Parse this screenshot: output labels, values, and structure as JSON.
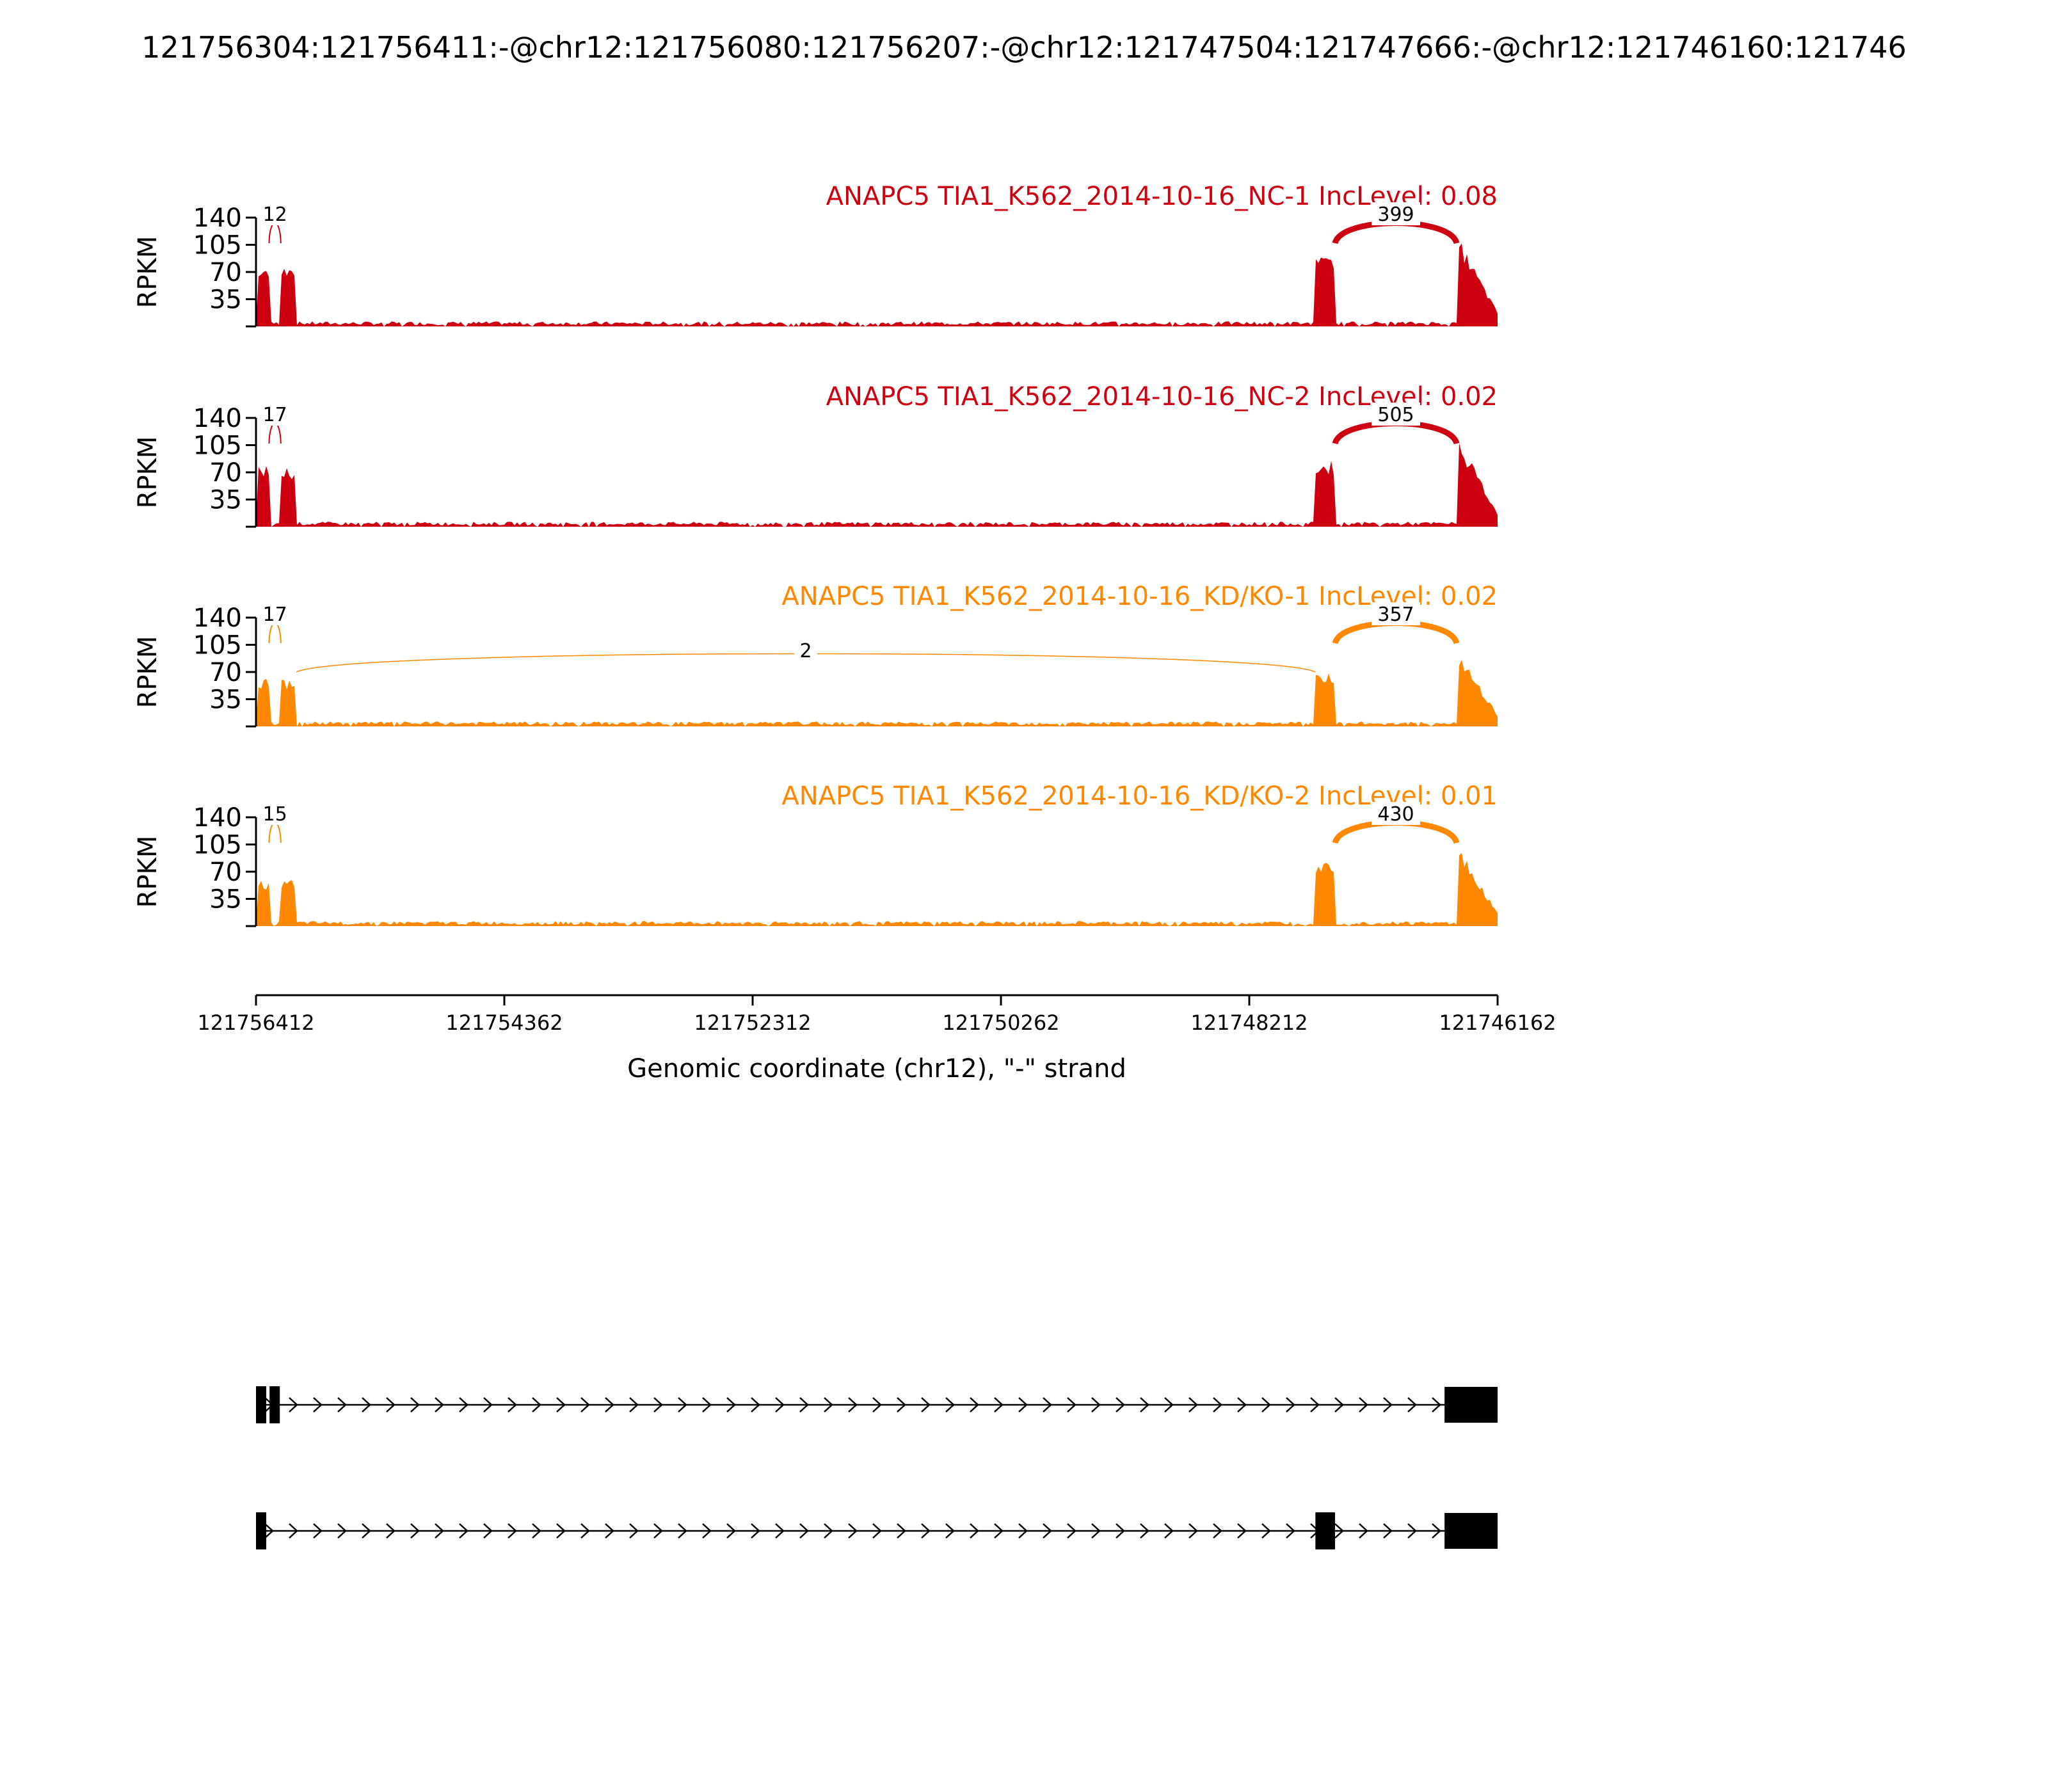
{
  "chart_data": {
    "type": "area",
    "title": "121756304:121756411:-@chr12:121756080:121756207:-@chr12:121747504:121747666:-@chr12:121746160:121746",
    "ylabel": "RPKM",
    "xlabel": "Genomic coordinate (chr12), \"-\" strand",
    "xlim": [
      121756412,
      121746162
    ],
    "x_ticks": [
      "121756412",
      "121754362",
      "121752312",
      "121750262",
      "121748212",
      "121746162"
    ],
    "x_tick_values": [
      121756412,
      121754362,
      121752312,
      121750262,
      121748212,
      121746162
    ],
    "y_ticks": [
      "140",
      "105",
      "70",
      "35"
    ],
    "y_tick_values": [
      140,
      105,
      70,
      35
    ],
    "ylim": [
      0,
      140
    ],
    "exons_reference": {
      "exon1": [
        121756304,
        121756411
      ],
      "exon2": [
        121756080,
        121756207
      ],
      "exon3": [
        121747504,
        121747666
      ],
      "exon4": [
        121746160,
        121746500
      ]
    },
    "intron_level": 4,
    "series": [
      {
        "name": "ANAPC5 TIA1_K562_2014-10-16_NC-1 IncLevel: 0.08",
        "color": "#cc0011",
        "exon_peaks": [
          80,
          80,
          90,
          120
        ],
        "junctions": [
          {
            "label": "12",
            "from": 121756304,
            "to": 121756207,
            "height": 0.95
          },
          {
            "label": "399",
            "from": 121747504,
            "to": 121746500,
            "height": 1.0
          }
        ]
      },
      {
        "name": "ANAPC5 TIA1_K562_2014-10-16_NC-2 IncLevel: 0.02",
        "color": "#cc0011",
        "exon_peaks": [
          80,
          78,
          85,
          120
        ],
        "junctions": [
          {
            "label": "17",
            "from": 121756304,
            "to": 121756207,
            "height": 0.95
          },
          {
            "label": "505",
            "from": 121747504,
            "to": 121746500,
            "height": 1.0
          }
        ]
      },
      {
        "name": "ANAPC5 TIA1_K562_2014-10-16_KD/KO-1 IncLevel: 0.02",
        "color": "#ff8800",
        "exon_peaks": [
          62,
          60,
          70,
          100
        ],
        "junctions": [
          {
            "label": "17",
            "from": 121756304,
            "to": 121756207,
            "height": 0.95
          },
          {
            "label": "2",
            "from": 121756080,
            "to": 121747666,
            "height": 1.0
          },
          {
            "label": "357",
            "from": 121747504,
            "to": 121746500,
            "height": 1.0
          }
        ]
      },
      {
        "name": "ANAPC5 TIA1_K562_2014-10-16_KD/KO-2 IncLevel: 0.01",
        "color": "#ff8800",
        "exon_peaks": [
          60,
          60,
          85,
          110
        ],
        "junctions": [
          {
            "label": "15",
            "from": 121756304,
            "to": 121756207,
            "height": 0.95
          },
          {
            "label": "430",
            "from": 121747504,
            "to": 121746500,
            "height": 1.0
          }
        ]
      }
    ],
    "isoforms": [
      {
        "exons": [
          [
            121756412,
            121756350
          ],
          [
            121756300,
            121756230
          ],
          [
            121746600,
            121746162
          ]
        ]
      },
      {
        "exons": [
          [
            121756412,
            121756370
          ],
          [
            121747666,
            121747504
          ],
          [
            121746600,
            121746162
          ]
        ]
      }
    ]
  }
}
